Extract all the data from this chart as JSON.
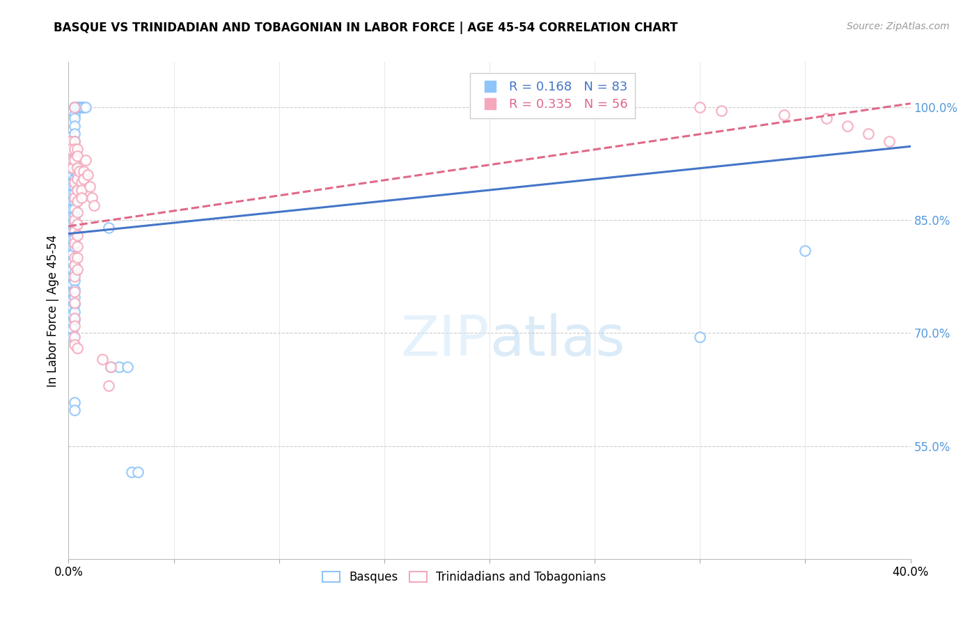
{
  "title": "BASQUE VS TRINIDADIAN AND TOBAGONIAN IN LABOR FORCE | AGE 45-54 CORRELATION CHART",
  "source": "Source: ZipAtlas.com",
  "ylabel": "In Labor Force | Age 45-54",
  "xlim": [
    0.0,
    0.4
  ],
  "ylim": [
    0.4,
    1.06
  ],
  "yticks": [
    0.55,
    0.7,
    0.85,
    1.0
  ],
  "ytick_labels": [
    "55.0%",
    "70.0%",
    "85.0%",
    "100.0%"
  ],
  "xticks": [
    0.0,
    0.05,
    0.1,
    0.15,
    0.2,
    0.25,
    0.3,
    0.35,
    0.4
  ],
  "xtick_labels": [
    "0.0%",
    "",
    "",
    "",
    "",
    "",
    "",
    "",
    "40.0%"
  ],
  "blue_R": 0.168,
  "blue_N": 83,
  "pink_R": 0.335,
  "pink_N": 56,
  "blue_color": "#8EC4F8",
  "pink_color": "#F5A8BB",
  "blue_line_color": "#4475C8",
  "pink_line_color": "#E06888",
  "blue_label": "Basques",
  "pink_label": "Trinidadians and Tobagonians",
  "blue_scatter": [
    [
      0.001,
      0.96
    ],
    [
      0.001,
      0.93
    ],
    [
      0.002,
      0.955
    ],
    [
      0.002,
      0.945
    ],
    [
      0.002,
      0.935
    ],
    [
      0.002,
      0.925
    ],
    [
      0.002,
      0.91
    ],
    [
      0.002,
      0.9
    ],
    [
      0.002,
      0.895
    ],
    [
      0.002,
      0.885
    ],
    [
      0.002,
      0.875
    ],
    [
      0.002,
      0.865
    ],
    [
      0.002,
      0.855
    ],
    [
      0.002,
      0.845
    ],
    [
      0.002,
      0.835
    ],
    [
      0.002,
      0.825
    ],
    [
      0.002,
      0.815
    ],
    [
      0.002,
      0.805
    ],
    [
      0.002,
      0.795
    ],
    [
      0.002,
      0.785
    ],
    [
      0.002,
      0.775
    ],
    [
      0.002,
      0.765
    ],
    [
      0.002,
      0.755
    ],
    [
      0.002,
      0.745
    ],
    [
      0.002,
      0.735
    ],
    [
      0.002,
      0.725
    ],
    [
      0.002,
      0.715
    ],
    [
      0.002,
      0.705
    ],
    [
      0.002,
      0.695
    ],
    [
      0.003,
      1.0
    ],
    [
      0.003,
      1.0
    ],
    [
      0.003,
      1.0
    ],
    [
      0.003,
      0.99
    ],
    [
      0.003,
      0.985
    ],
    [
      0.003,
      0.975
    ],
    [
      0.003,
      0.965
    ],
    [
      0.003,
      0.955
    ],
    [
      0.003,
      0.945
    ],
    [
      0.003,
      0.935
    ],
    [
      0.003,
      0.925
    ],
    [
      0.003,
      0.915
    ],
    [
      0.003,
      0.905
    ],
    [
      0.003,
      0.895
    ],
    [
      0.003,
      0.885
    ],
    [
      0.003,
      0.875
    ],
    [
      0.003,
      0.865
    ],
    [
      0.003,
      0.855
    ],
    [
      0.003,
      0.845
    ],
    [
      0.003,
      0.835
    ],
    [
      0.003,
      0.825
    ],
    [
      0.003,
      0.815
    ],
    [
      0.003,
      0.79
    ],
    [
      0.003,
      0.78
    ],
    [
      0.003,
      0.77
    ],
    [
      0.003,
      0.758
    ],
    [
      0.003,
      0.748
    ],
    [
      0.003,
      0.738
    ],
    [
      0.003,
      0.728
    ],
    [
      0.003,
      0.718
    ],
    [
      0.003,
      0.608
    ],
    [
      0.003,
      0.598
    ],
    [
      0.004,
      1.0
    ],
    [
      0.004,
      1.0
    ],
    [
      0.004,
      0.91
    ],
    [
      0.004,
      0.9
    ],
    [
      0.005,
      1.0
    ],
    [
      0.005,
      1.0
    ],
    [
      0.005,
      1.0
    ],
    [
      0.005,
      1.0
    ],
    [
      0.006,
      1.0
    ],
    [
      0.006,
      1.0
    ],
    [
      0.006,
      1.0
    ],
    [
      0.007,
      1.0
    ],
    [
      0.007,
      1.0
    ],
    [
      0.008,
      1.0
    ],
    [
      0.008,
      0.91
    ],
    [
      0.019,
      0.84
    ],
    [
      0.02,
      0.655
    ],
    [
      0.024,
      0.655
    ],
    [
      0.028,
      0.655
    ],
    [
      0.03,
      0.515
    ],
    [
      0.033,
      0.515
    ],
    [
      0.3,
      0.695
    ],
    [
      0.35,
      0.81
    ]
  ],
  "pink_scatter": [
    [
      0.001,
      0.955
    ],
    [
      0.001,
      0.945
    ],
    [
      0.002,
      0.93
    ],
    [
      0.002,
      0.92
    ],
    [
      0.003,
      1.0
    ],
    [
      0.003,
      0.955
    ],
    [
      0.003,
      0.945
    ],
    [
      0.003,
      0.93
    ],
    [
      0.003,
      0.9
    ],
    [
      0.003,
      0.88
    ],
    [
      0.003,
      0.85
    ],
    [
      0.003,
      0.835
    ],
    [
      0.003,
      0.82
    ],
    [
      0.003,
      0.8
    ],
    [
      0.003,
      0.79
    ],
    [
      0.003,
      0.775
    ],
    [
      0.003,
      0.755
    ],
    [
      0.003,
      0.74
    ],
    [
      0.003,
      0.72
    ],
    [
      0.003,
      0.71
    ],
    [
      0.003,
      0.695
    ],
    [
      0.003,
      0.685
    ],
    [
      0.004,
      0.945
    ],
    [
      0.004,
      0.935
    ],
    [
      0.004,
      0.92
    ],
    [
      0.004,
      0.905
    ],
    [
      0.004,
      0.89
    ],
    [
      0.004,
      0.875
    ],
    [
      0.004,
      0.86
    ],
    [
      0.004,
      0.845
    ],
    [
      0.004,
      0.83
    ],
    [
      0.004,
      0.815
    ],
    [
      0.004,
      0.8
    ],
    [
      0.004,
      0.785
    ],
    [
      0.004,
      0.68
    ],
    [
      0.005,
      0.915
    ],
    [
      0.006,
      0.9
    ],
    [
      0.006,
      0.89
    ],
    [
      0.006,
      0.88
    ],
    [
      0.007,
      0.915
    ],
    [
      0.007,
      0.905
    ],
    [
      0.008,
      0.93
    ],
    [
      0.009,
      0.91
    ],
    [
      0.01,
      0.895
    ],
    [
      0.011,
      0.88
    ],
    [
      0.012,
      0.87
    ],
    [
      0.016,
      0.665
    ],
    [
      0.019,
      0.63
    ],
    [
      0.02,
      0.655
    ],
    [
      0.3,
      1.0
    ],
    [
      0.31,
      0.995
    ],
    [
      0.34,
      0.99
    ],
    [
      0.36,
      0.985
    ],
    [
      0.37,
      0.975
    ],
    [
      0.38,
      0.965
    ],
    [
      0.39,
      0.955
    ]
  ],
  "blue_line": [
    [
      0.0,
      0.832
    ],
    [
      0.4,
      0.948
    ]
  ],
  "pink_line": [
    [
      0.0,
      0.842
    ],
    [
      0.4,
      1.005
    ]
  ]
}
